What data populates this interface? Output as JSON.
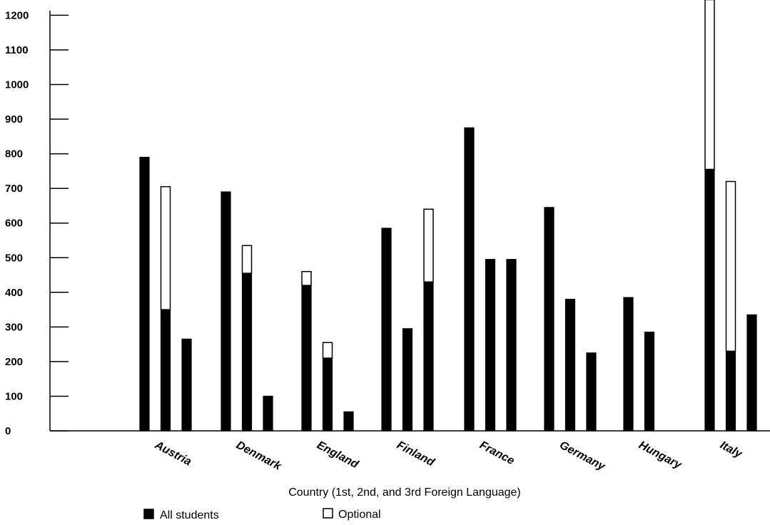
{
  "chart_data": {
    "type": "bar",
    "stacked_segments": [
      "All students",
      "Optional"
    ],
    "xlabel": "Country (1st, 2nd, and 3rd Foreign Language)",
    "ylabel": "",
    "ylim": [
      0,
      1250
    ],
    "yticks": [
      0,
      100,
      200,
      300,
      400,
      500,
      600,
      700,
      800,
      900,
      1000,
      1100,
      1200
    ],
    "grid": false,
    "legend": {
      "placement": "bottom",
      "entries": [
        {
          "label": "All students",
          "color": "#000000"
        },
        {
          "label": "Optional",
          "color": "#ffffff"
        }
      ]
    },
    "categories": [
      "Austria",
      "Denmark",
      "England",
      "Finland",
      "France",
      "Germany",
      "Hungary",
      "Italy"
    ],
    "groups": [
      {
        "category": "Austria",
        "bars": [
          {
            "all": 790,
            "optional": 0
          },
          {
            "all": 350,
            "optional": 355
          },
          {
            "all": 265,
            "optional": 0
          }
        ]
      },
      {
        "category": "Denmark",
        "bars": [
          {
            "all": 690,
            "optional": 0
          },
          {
            "all": 455,
            "optional": 80
          },
          {
            "all": 100,
            "optional": 0
          }
        ]
      },
      {
        "category": "England",
        "bars": [
          {
            "all": 420,
            "optional": 40
          },
          {
            "all": 210,
            "optional": 45
          },
          {
            "all": 55,
            "optional": 0
          }
        ]
      },
      {
        "category": "Finland",
        "bars": [
          {
            "all": 585,
            "optional": 0
          },
          {
            "all": 295,
            "optional": 0
          },
          {
            "all": 430,
            "optional": 210
          }
        ]
      },
      {
        "category": "France",
        "bars": [
          {
            "all": 875,
            "optional": 0
          },
          {
            "all": 495,
            "optional": 0
          },
          {
            "all": 495,
            "optional": 0
          }
        ]
      },
      {
        "category": "Germany",
        "bars": [
          {
            "all": 645,
            "optional": 0
          },
          {
            "all": 380,
            "optional": 0
          },
          {
            "all": 225,
            "optional": 0
          }
        ]
      },
      {
        "category": "Hungary",
        "bars": [
          {
            "all": 385,
            "optional": 0
          },
          {
            "all": 285,
            "optional": 0
          }
        ]
      },
      {
        "category": "Italy",
        "bars": [
          {
            "all": 755,
            "optional": 490
          },
          {
            "all": 230,
            "optional": 490
          },
          {
            "all": 335,
            "optional": 0
          }
        ]
      }
    ]
  }
}
